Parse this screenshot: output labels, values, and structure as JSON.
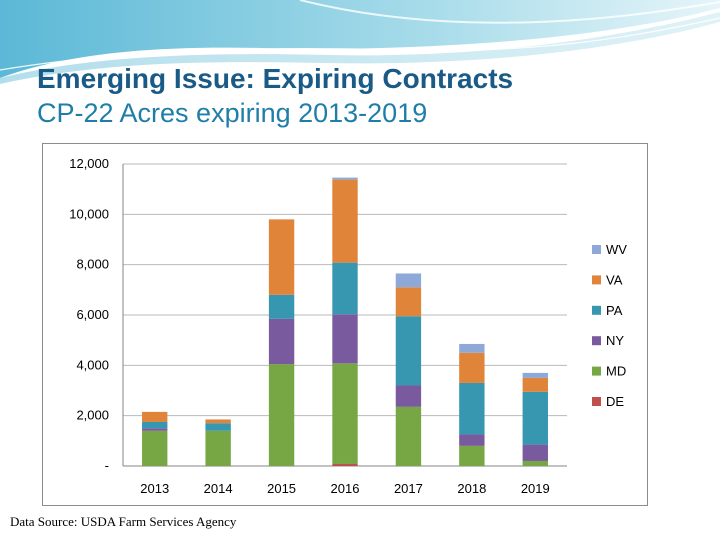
{
  "slide": {
    "title": "Emerging Issue: Expiring Contracts",
    "subtitle": "CP-22 Acres expiring 2013-2019",
    "source": "Data Source: USDA Farm Services Agency"
  },
  "colors": {
    "title": "#1a5a86",
    "subtitle": "#1f7ea8",
    "DE": "#c0504d",
    "MD": "#77a645",
    "NY": "#7a5a9e",
    "PA": "#3796b0",
    "VA": "#e0843a",
    "WV": "#8ea9d8"
  },
  "chart_data": {
    "type": "bar",
    "stacked": true,
    "title": "",
    "xlabel": "",
    "ylabel": "",
    "ylim": [
      0,
      12000
    ],
    "yticks": [
      0,
      2000,
      4000,
      6000,
      8000,
      10000,
      12000
    ],
    "ytick_labels": [
      "-",
      "2,000",
      "4,000",
      "6,000",
      "8,000",
      "10,000",
      "12,000"
    ],
    "grid": true,
    "legend_position": "right",
    "legend_order": [
      "WV",
      "VA",
      "PA",
      "NY",
      "MD",
      "DE"
    ],
    "categories": [
      "2013",
      "2014",
      "2015",
      "2016",
      "2017",
      "2018",
      "2019"
    ],
    "series": [
      {
        "name": "DE",
        "values": [
          0,
          0,
          0,
          80,
          0,
          0,
          0
        ]
      },
      {
        "name": "MD",
        "values": [
          1400,
          1400,
          4050,
          4000,
          2350,
          800,
          200
        ]
      },
      {
        "name": "NY",
        "values": [
          100,
          0,
          1800,
          1950,
          850,
          450,
          650
        ]
      },
      {
        "name": "PA",
        "values": [
          250,
          300,
          950,
          2050,
          2750,
          2050,
          2100
        ]
      },
      {
        "name": "VA",
        "values": [
          400,
          150,
          3000,
          3300,
          1150,
          1200,
          550
        ]
      },
      {
        "name": "WV",
        "values": [
          0,
          0,
          0,
          80,
          550,
          350,
          200
        ]
      }
    ]
  }
}
